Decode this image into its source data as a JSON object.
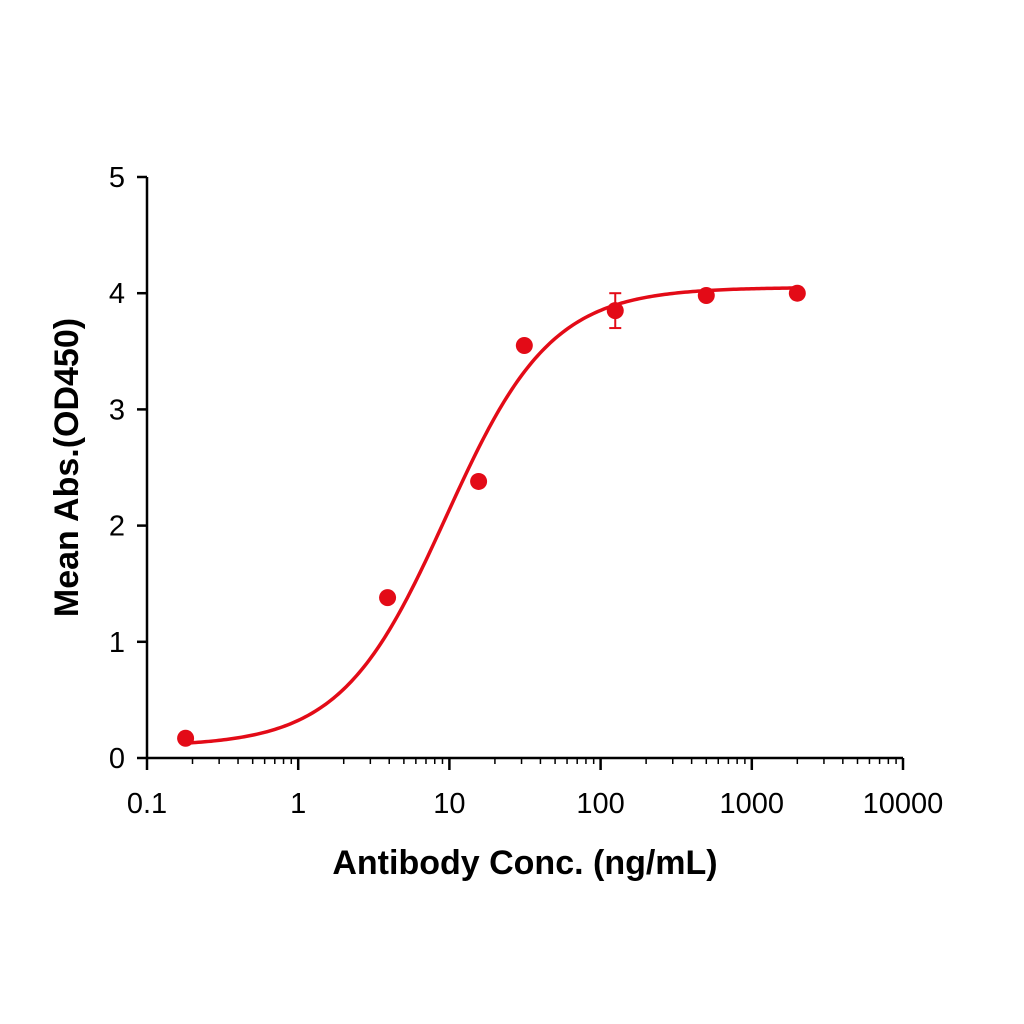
{
  "chart_data": {
    "type": "scatter",
    "xlabel": "Antibody Conc. (ng/mL)",
    "ylabel": "Mean Abs.(OD450)",
    "x_scale": "log",
    "xlim": [
      0.1,
      10000
    ],
    "ylim": [
      0,
      5
    ],
    "x_ticks": [
      "0.1",
      "1",
      "10",
      "100",
      "1000",
      "10000"
    ],
    "y_ticks": [
      "0",
      "1",
      "2",
      "3",
      "4",
      "5"
    ],
    "grid": false,
    "legend": "none",
    "color": "#e30b17",
    "points": [
      {
        "x": 0.18,
        "y": 0.17
      },
      {
        "x": 3.9,
        "y": 1.38
      },
      {
        "x": 15.6,
        "y": 2.38
      },
      {
        "x": 31.3,
        "y": 3.55
      },
      {
        "x": 125,
        "y": 3.85,
        "error": 0.15
      },
      {
        "x": 500,
        "y": 3.98
      },
      {
        "x": 2000,
        "y": 4.0
      }
    ],
    "fit": {
      "model": "4PL",
      "bottom": 0.1,
      "top": 4.05,
      "ec50": 9.5,
      "hill": 1.25,
      "x_range": [
        0.18,
        2000
      ]
    }
  }
}
